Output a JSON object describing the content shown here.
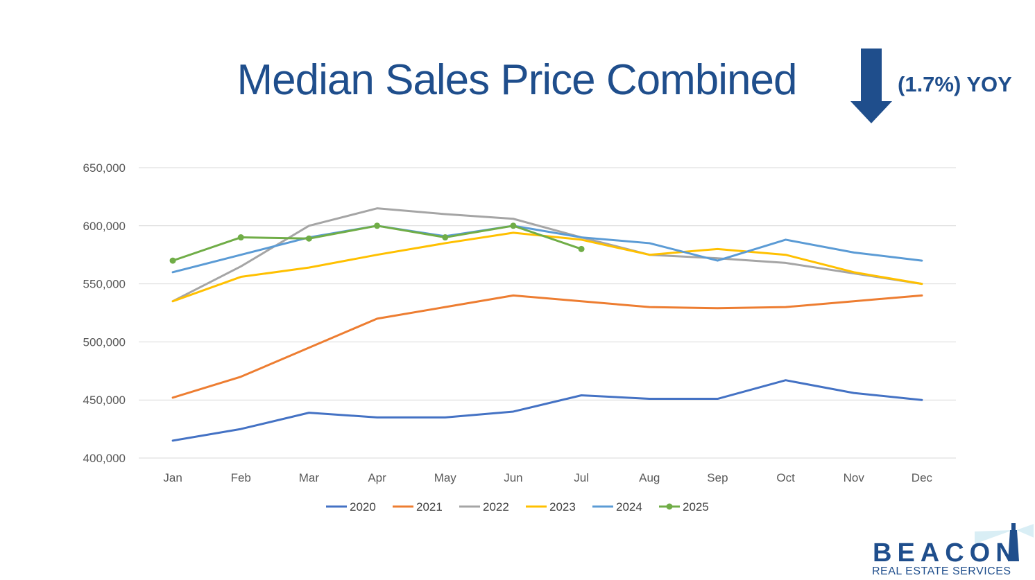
{
  "page": {
    "title": "Median Sales Price Combined",
    "yoy_label": "(1.7%) YOY"
  },
  "logo": {
    "name": "BEACON",
    "subtitle": "REAL ESTATE SERVICES",
    "icon": "lighthouse-icon"
  },
  "colors": {
    "title": "#1f4e8c",
    "arrow": "#1f4e8c"
  },
  "chart_data": {
    "type": "line",
    "categories": [
      "Jan",
      "Feb",
      "Mar",
      "Apr",
      "May",
      "Jun",
      "Jul",
      "Aug",
      "Sep",
      "Oct",
      "Nov",
      "Dec"
    ],
    "ylim": [
      400000,
      650000
    ],
    "yticks": [
      400000,
      450000,
      500000,
      550000,
      600000,
      650000
    ],
    "ytick_labels": [
      "400,000",
      "450,000",
      "500,000",
      "550,000",
      "600,000",
      "650,000"
    ],
    "grid": true,
    "legend_position": "bottom",
    "series": [
      {
        "name": "2020",
        "color": "#4472c4",
        "markers": false,
        "values": [
          415000,
          425000,
          439000,
          435000,
          435000,
          440000,
          454000,
          451000,
          451000,
          467000,
          456000,
          450000
        ]
      },
      {
        "name": "2021",
        "color": "#ed7d31",
        "markers": false,
        "values": [
          452000,
          470000,
          495000,
          520000,
          530000,
          540000,
          535000,
          530000,
          529000,
          530000,
          535000,
          540000
        ]
      },
      {
        "name": "2022",
        "color": "#a5a5a5",
        "markers": false,
        "values": [
          535000,
          565000,
          600000,
          615000,
          610000,
          606000,
          590000,
          575000,
          572000,
          568000,
          559000,
          550000
        ]
      },
      {
        "name": "2023",
        "color": "#ffc000",
        "markers": false,
        "values": [
          535000,
          556000,
          564000,
          575000,
          585000,
          594000,
          588000,
          575000,
          580000,
          575000,
          560000,
          550000
        ]
      },
      {
        "name": "2024",
        "color": "#5b9bd5",
        "markers": false,
        "values": [
          560000,
          575000,
          590000,
          600000,
          591000,
          600000,
          590000,
          585000,
          570000,
          588000,
          577000,
          570000
        ]
      },
      {
        "name": "2025",
        "color": "#70ad47",
        "markers": true,
        "values": [
          570000,
          590000,
          589000,
          600000,
          590000,
          600000,
          580000,
          null,
          null,
          null,
          null,
          null
        ]
      }
    ]
  }
}
